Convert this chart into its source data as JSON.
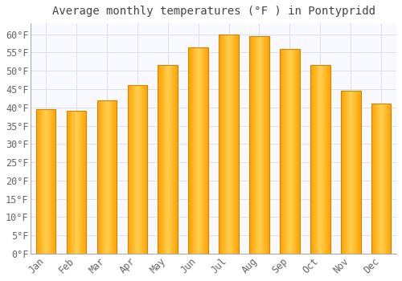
{
  "title": "Average monthly temperatures (°F ) in Pontypridd",
  "months": [
    "Jan",
    "Feb",
    "Mar",
    "Apr",
    "May",
    "Jun",
    "Jul",
    "Aug",
    "Sep",
    "Oct",
    "Nov",
    "Dec"
  ],
  "values": [
    39.5,
    39.0,
    42.0,
    46.0,
    51.5,
    56.5,
    60.0,
    59.5,
    56.0,
    51.5,
    44.5,
    41.0
  ],
  "bar_color_center": "#FFD050",
  "bar_color_edge": "#FFA000",
  "bar_outline_color": "#CC8800",
  "background_color": "#FFFFFF",
  "plot_bg_color": "#F8F8FF",
  "grid_color": "#DDDDEE",
  "text_color": "#666666",
  "title_color": "#444444",
  "ylim": [
    0,
    63
  ],
  "yticks": [
    0,
    5,
    10,
    15,
    20,
    25,
    30,
    35,
    40,
    45,
    50,
    55,
    60
  ],
  "title_fontsize": 10,
  "tick_fontsize": 8.5,
  "bar_width": 0.65
}
